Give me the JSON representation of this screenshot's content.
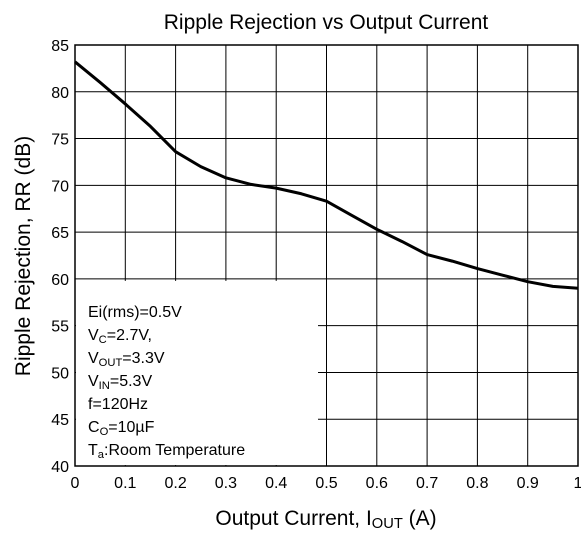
{
  "chart_data": {
    "type": "line",
    "title": "Ripple Rejection vs Output Current",
    "xlabel": [
      "Output Current, I",
      "OUT",
      " (A)"
    ],
    "ylabel": "Ripple Rejection, RR (dB)",
    "x": [
      0,
      0.05,
      0.1,
      0.15,
      0.2,
      0.25,
      0.3,
      0.35,
      0.4,
      0.45,
      0.5,
      0.55,
      0.6,
      0.65,
      0.7,
      0.75,
      0.8,
      0.85,
      0.9,
      0.95,
      1
    ],
    "series": [
      {
        "color": "#000000",
        "values": [
          83.2,
          81,
          78.7,
          76.3,
          73.6,
          72,
          70.8,
          70.1,
          69.7,
          69.1,
          68.3,
          66.8,
          65.3,
          64,
          62.6,
          61.9,
          61.1,
          60.4,
          59.7,
          59.2,
          59
        ]
      }
    ],
    "xlim": [
      0,
      1
    ],
    "ylim": [
      40,
      85
    ],
    "xticks": [
      0,
      0.1,
      0.2,
      0.3,
      0.4,
      0.5,
      0.6,
      0.7,
      0.8,
      0.9,
      1
    ],
    "yticks": [
      40,
      45,
      50,
      55,
      60,
      65,
      70,
      75,
      80,
      85
    ],
    "grid": true,
    "annotation": [
      [
        "Ei(rms)=0.5V"
      ],
      [
        "V",
        "C",
        "=2.7V,"
      ],
      [
        "V",
        "OUT",
        "=3.3V"
      ],
      [
        "V",
        "IN",
        "=5.3V"
      ],
      [
        "f=120Hz"
      ],
      [
        "C",
        "O",
        "=10µF"
      ],
      [
        "T",
        "a",
        ":Room Temperature"
      ]
    ]
  }
}
